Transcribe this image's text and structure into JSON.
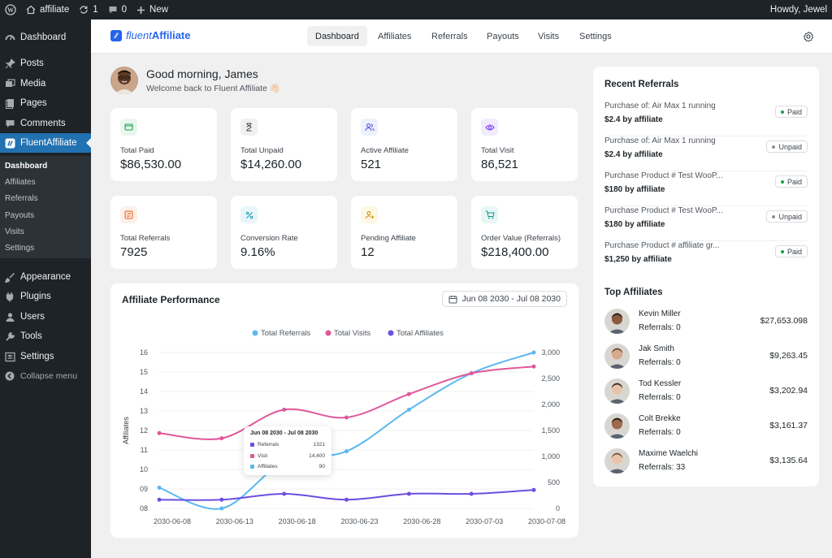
{
  "admin_bar": {
    "site_name": "affiliate",
    "updates_count": "1",
    "comments_count": "0",
    "new_label": "New",
    "greeting": "Howdy, Jewel"
  },
  "sidebar": {
    "items": [
      {
        "label": "Dashboard",
        "icon": "dashboard-icon"
      },
      {
        "label": "Posts",
        "icon": "pin-icon"
      },
      {
        "label": "Media",
        "icon": "media-icon"
      },
      {
        "label": "Pages",
        "icon": "pages-icon"
      },
      {
        "label": "Comments",
        "icon": "comment-icon"
      },
      {
        "label": "FluentAffiliate",
        "icon": "fluent-affiliate-icon"
      },
      {
        "label": "Appearance",
        "icon": "brush-icon"
      },
      {
        "label": "Plugins",
        "icon": "plugin-icon"
      },
      {
        "label": "Users",
        "icon": "users-icon"
      },
      {
        "label": "Tools",
        "icon": "wrench-icon"
      },
      {
        "label": "Settings",
        "icon": "settings-icon"
      },
      {
        "label": "Collapse menu",
        "icon": "collapse-icon"
      }
    ],
    "submenu": [
      "Dashboard",
      "Affiliates",
      "Referrals",
      "Payouts",
      "Visits",
      "Settings"
    ]
  },
  "header": {
    "logo_fluent": "fluent",
    "logo_affiliate": "Affiliate",
    "tabs": [
      "Dashboard",
      "Affiliates",
      "Referrals",
      "Payouts",
      "Visits",
      "Settings"
    ]
  },
  "greeting": {
    "title": "Good morning, James",
    "subtitle": "Welcome back to Fluent Affiliate 👋🏻"
  },
  "stats": [
    {
      "label": "Total Paid",
      "value": "$86,530.00",
      "icon": "wallet-icon",
      "color": "#16a34a",
      "bg": "#eaf7ef"
    },
    {
      "label": "Total Unpaid",
      "value": "$14,260.00",
      "icon": "hourglass-icon",
      "color": "#3c434a",
      "bg": "#f0f0f1"
    },
    {
      "label": "Active Affiliate",
      "value": "521",
      "icon": "people-icon",
      "color": "#4f46e5",
      "bg": "#eef0fc"
    },
    {
      "label": "Total Visit",
      "value": "86,521",
      "icon": "eye-icon",
      "color": "#7c3aed",
      "bg": "#f1ecfd"
    },
    {
      "label": "Total Referrals",
      "value": "7925",
      "icon": "exchange-icon",
      "color": "#ea580c",
      "bg": "#fdf0e8"
    },
    {
      "label": "Conversion Rate",
      "value": "9.16%",
      "icon": "percent-icon",
      "color": "#0891b2",
      "bg": "#e8f6fa"
    },
    {
      "label": "Pending Affiliate",
      "value": "12",
      "icon": "user-plus-icon",
      "color": "#ca8a04",
      "bg": "#fdf7e4"
    },
    {
      "label": "Order Value (Referrals)",
      "value": "$218,400.00",
      "icon": "cart-icon",
      "color": "#0d9488",
      "bg": "#e7f7f5"
    }
  ],
  "chart_card": {
    "title": "Affiliate Performance",
    "date_range": "Jun 08 2030 - Jul 08 2030"
  },
  "chart_data": {
    "type": "line",
    "x": [
      "2030-06-08",
      "2030-06-13",
      "2030-06-18",
      "2030-06-23",
      "2030-06-28",
      "2030-07-03",
      "2030-07-08"
    ],
    "ylabel": "Affiliates",
    "y_left_ticks": [
      "08",
      "09",
      "10",
      "11",
      "12",
      "13",
      "14",
      "15",
      "16"
    ],
    "y_left_lim": [
      8,
      16
    ],
    "y_right_ticks": [
      "0",
      "500",
      "1,000",
      "1,500",
      "2,000",
      "2,500",
      "3,000"
    ],
    "y_right_lim": [
      0,
      3000
    ],
    "legend_position": "top-center",
    "series": [
      {
        "name": "Total Referrals",
        "color": "#5bb8f0",
        "axis": "right",
        "values": [
          400,
          0,
          900,
          1100,
          1900,
          2600,
          3000
        ]
      },
      {
        "name": "Total Visits",
        "color": "#e0579a",
        "axis": "right",
        "values": [
          1450,
          1350,
          1900,
          1750,
          2200,
          2600,
          2730
        ]
      },
      {
        "name": "Total Affiliates",
        "color": "#6d4ee0",
        "axis": "left",
        "values": [
          8.45,
          8.45,
          8.75,
          8.45,
          8.75,
          8.75,
          8.95
        ]
      }
    ],
    "tooltip": {
      "title": "Jun 08 2030 - Jul 08 2030",
      "rows": [
        {
          "label": "Referrals",
          "value": "1321",
          "color": "#6d4ee0"
        },
        {
          "label": "Visit",
          "value": "14,400",
          "color": "#e0579a"
        },
        {
          "label": "Affiliates",
          "value": "90",
          "color": "#5bb8f0"
        }
      ]
    }
  },
  "recent_referrals": {
    "title": "Recent Referrals",
    "items": [
      {
        "name": "Purchase of: Air Max 1 running",
        "amount": "$2.4 by affiliate",
        "status": "Paid"
      },
      {
        "name": "Purchase of: Air Max 1 running",
        "amount": "$2.4 by affiliate",
        "status": "Unpaid"
      },
      {
        "name": "Purchase Product # Test WooP...",
        "amount": "$180 by affiliate",
        "status": "Paid"
      },
      {
        "name": "Purchase Product # Test WooP...",
        "amount": "$180 by affiliate",
        "status": "Unpaid"
      },
      {
        "name": "Purchase Product # affiliate gr...",
        "amount": "$1,250 by affiliate",
        "status": "Paid"
      }
    ]
  },
  "top_affiliates": {
    "title": "Top Affiliates",
    "items": [
      {
        "name": "Kevin Miller",
        "referrals": "Referrals: 0",
        "amount": "$27,653.098",
        "skin": "#8a5a3c",
        "hair": "#2a1a12"
      },
      {
        "name": "Jak Smith",
        "referrals": "Referrals: 0",
        "amount": "$9,263.45",
        "skin": "#d8a98a",
        "hair": "#6a4a30"
      },
      {
        "name": "Tod Kessler",
        "referrals": "Referrals: 0",
        "amount": "$3,202.94",
        "skin": "#e6c3a8",
        "hair": "#3a2a20"
      },
      {
        "name": "Colt Brekke",
        "referrals": "Referrals: 0",
        "amount": "$3,161.37",
        "skin": "#9c6a4a",
        "hair": "#201510"
      },
      {
        "name": "Maxime Waelchi",
        "referrals": "Referrals: 33",
        "amount": "$3,135.64",
        "skin": "#e8c4aa",
        "hair": "#7a5a3a"
      }
    ]
  },
  "status_colors": {
    "Paid": "#16a34a",
    "Unpaid": "#8c8f94"
  }
}
